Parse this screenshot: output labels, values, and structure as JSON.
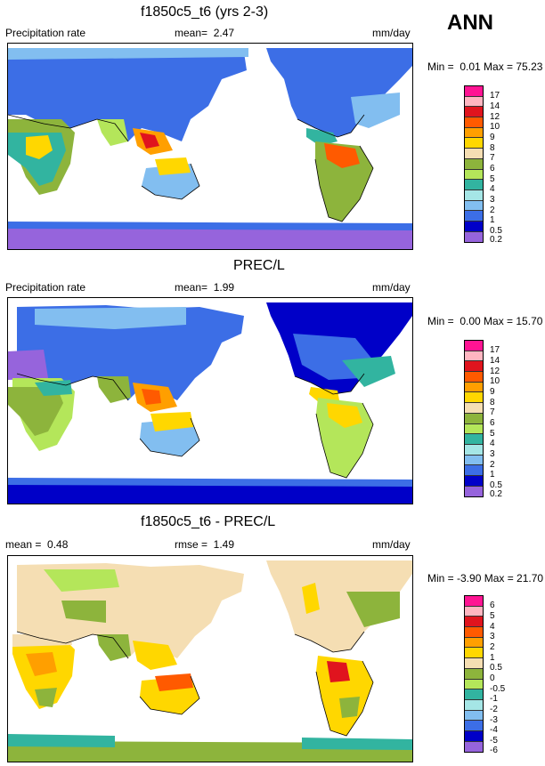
{
  "season": "ANN",
  "panels": [
    {
      "title": "f1850c5_t6 (yrs 2-3)",
      "left_label": "Precipitation rate",
      "stat_text": "mean=  2.47",
      "units": "mm/day",
      "minmax": "Min =  0.01 Max = 75.23",
      "levels": [
        "17",
        "14",
        "12",
        "10",
        "9",
        "8",
        "7",
        "6",
        "5",
        "4",
        "3",
        "2",
        "1",
        "0.5",
        "0.2"
      ],
      "colors": [
        "#ff1493",
        "#ffb6c1",
        "#e0141e",
        "#ff5a00",
        "#ff9f00",
        "#ffd700",
        "#f5deb3",
        "#8db43c",
        "#b4e65a",
        "#32b4a0",
        "#a5e6e6",
        "#82bef0",
        "#3c6ee6",
        "#0000c8",
        "#9664dc"
      ]
    },
    {
      "title": "PREC/L",
      "left_label": "Precipitation rate",
      "stat_text": "mean=  1.99",
      "units": "mm/day",
      "minmax": "Min =  0.00 Max = 15.70",
      "levels": [
        "17",
        "14",
        "12",
        "10",
        "9",
        "8",
        "7",
        "6",
        "5",
        "4",
        "3",
        "2",
        "1",
        "0.5",
        "0.2"
      ],
      "colors": [
        "#ff1493",
        "#ffb6c1",
        "#e0141e",
        "#ff5a00",
        "#ff9f00",
        "#ffd700",
        "#f5deb3",
        "#8db43c",
        "#b4e65a",
        "#32b4a0",
        "#a5e6e6",
        "#82bef0",
        "#3c6ee6",
        "#0000c8",
        "#9664dc"
      ]
    },
    {
      "title": "f1850c5_t6 - PREC/L",
      "left_label": "mean =  0.48",
      "stat_text": "rmse =  1.49",
      "units": "mm/day",
      "minmax": "Min = -3.90 Max = 21.70",
      "levels": [
        "6",
        "5",
        "4",
        "3",
        "2",
        "1",
        "0.5",
        "0",
        "-0.5",
        "-1",
        "-2",
        "-3",
        "-4",
        "-5",
        "-6"
      ],
      "colors": [
        "#ff1493",
        "#ffb6c1",
        "#e0141e",
        "#ff5a00",
        "#ff9f00",
        "#ffd700",
        "#f5deb3",
        "#8db43c",
        "#b4e65a",
        "#32b4a0",
        "#a5e6e6",
        "#82bef0",
        "#3c6ee6",
        "#0000c8",
        "#9664dc"
      ]
    }
  ]
}
